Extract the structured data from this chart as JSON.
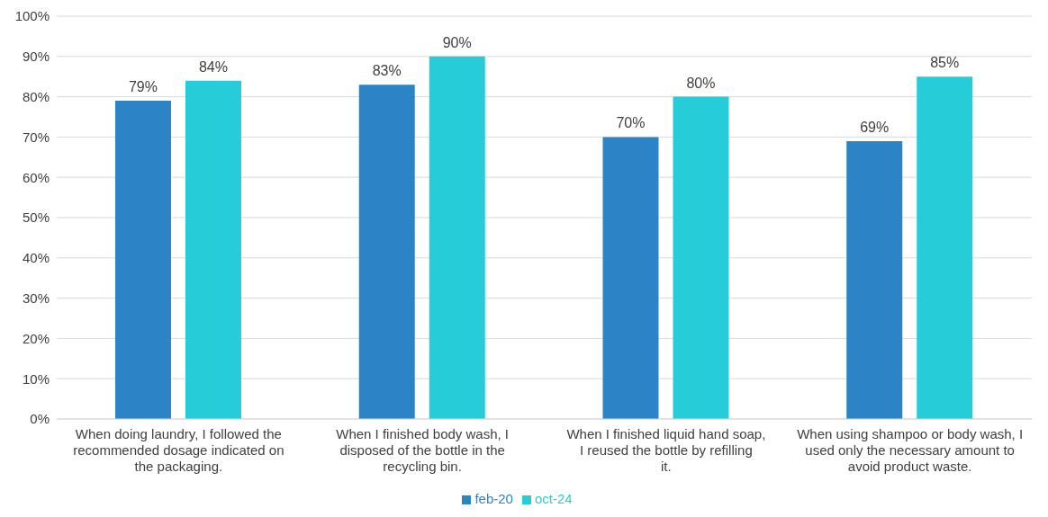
{
  "chart_data": {
    "type": "bar",
    "categories": [
      "When doing laundry, I followed the recommended dosage indicated on the packaging.",
      "When I finished body wash, I disposed of the bottle in the recycling bin.",
      "When I finished liquid hand soap, I reused the bottle by refilling it.",
      "When using shampoo or body wash, I used only the necessary amount to avoid product waste."
    ],
    "series": [
      {
        "name": "feb-20",
        "color": "#2a84c6",
        "values": [
          79,
          83,
          70,
          69
        ],
        "value_labels": [
          "79%",
          "83%",
          "70%",
          "69%"
        ]
      },
      {
        "name": "oct-24",
        "color": "#26ccd8",
        "values": [
          84,
          90,
          80,
          85
        ],
        "value_labels": [
          "84%",
          "90%",
          "80%",
          "85%"
        ]
      }
    ],
    "ylim": [
      0,
      100
    ],
    "yticks": [
      {
        "value": 0,
        "label": "0%"
      },
      {
        "value": 10,
        "label": "10%"
      },
      {
        "value": 20,
        "label": "20%"
      },
      {
        "value": 30,
        "label": "30%"
      },
      {
        "value": 40,
        "label": "40%"
      },
      {
        "value": 50,
        "label": "50%"
      },
      {
        "value": 60,
        "label": "60%"
      },
      {
        "value": 70,
        "label": "70%"
      },
      {
        "value": 80,
        "label": "80%"
      },
      {
        "value": 90,
        "label": "90%"
      },
      {
        "value": 100,
        "label": "100%"
      }
    ],
    "grid": "y",
    "legend": "bottom"
  }
}
